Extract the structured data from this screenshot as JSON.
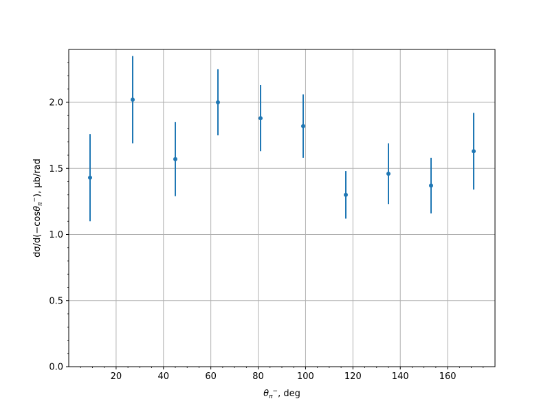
{
  "chart_data": {
    "type": "scatter",
    "title": "",
    "xlabel": "θ_{π⁻}, deg",
    "xlabel_parts": {
      "theta": "θ",
      "sub_pi": "π",
      "sup_minus": "−",
      "rest": ", deg"
    },
    "ylabel": "dσ/d(−cosθ_{π⁻}), μb/rad",
    "ylabel_parts": {
      "prefix": "dσ/d(−cos",
      "theta": "θ",
      "sub_pi": "π",
      "sup_minus": "−",
      "rest": "), μb/rad"
    },
    "xlim": [
      0,
      180
    ],
    "ylim": [
      0.0,
      2.4
    ],
    "xticks": [
      20,
      40,
      60,
      80,
      100,
      120,
      140,
      160
    ],
    "xtick_labels": [
      "20",
      "40",
      "60",
      "80",
      "100",
      "120",
      "140",
      "160"
    ],
    "yticks": [
      0.0,
      0.5,
      1.0,
      1.5,
      2.0
    ],
    "ytick_labels": [
      "0.0",
      "0.5",
      "1.0",
      "1.5",
      "2.0"
    ],
    "grid": true,
    "series": [
      {
        "color": "#1f77b4",
        "x": [
          9,
          27,
          45,
          63,
          81,
          99,
          117,
          135,
          153,
          171
        ],
        "y": [
          1.43,
          2.02,
          1.57,
          2.0,
          1.88,
          1.82,
          1.3,
          1.46,
          1.37,
          1.63
        ],
        "yerr": [
          0.33,
          0.33,
          0.28,
          0.25,
          0.25,
          0.24,
          0.18,
          0.23,
          0.21,
          0.29
        ]
      }
    ]
  }
}
